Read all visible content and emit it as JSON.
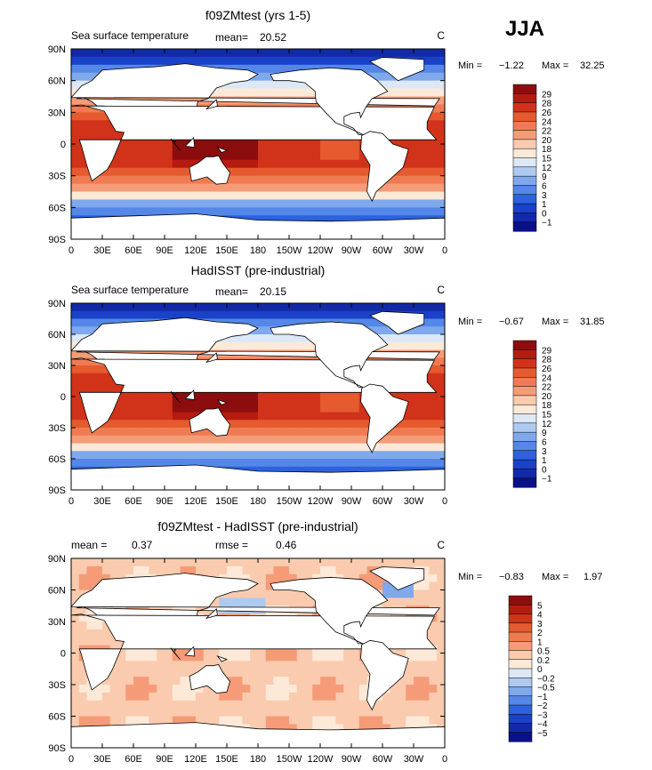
{
  "season_label": "JJA",
  "chart_data": [
    {
      "type": "heatmap",
      "title": "f09ZMtest (yrs 1-5)",
      "variable": "Sea surface temperature",
      "units": "C",
      "mean_label": "mean=",
      "mean_value": "20.52",
      "min_label": "Min =",
      "min_value": "−1.22",
      "max_label": "Max =",
      "max_value": "32.25",
      "colorbar_labels": [
        "29",
        "28",
        "26",
        "24",
        "22",
        "20",
        "18",
        "15",
        "12",
        "9",
        "6",
        "3",
        "1",
        "0",
        "−1"
      ],
      "colorbar_colors": [
        "#8c0d0d",
        "#b51b10",
        "#d1331a",
        "#e55a2e",
        "#f07b52",
        "#f69b78",
        "#facbae",
        "#fde9d8",
        "#dce8f6",
        "#aecaf0",
        "#7fa9ec",
        "#5487e8",
        "#2c62df",
        "#1a42c8",
        "#122aa7",
        "#0a108a"
      ],
      "lat_ticks": [
        "90N",
        "60N",
        "30N",
        "0",
        "30S",
        "60S",
        "90S"
      ],
      "lon_ticks": [
        "0",
        "30E",
        "60E",
        "90E",
        "120E",
        "150E",
        "180",
        "150W",
        "120W",
        "90W",
        "60W",
        "30W",
        "0"
      ],
      "field": "sst"
    },
    {
      "type": "heatmap",
      "title": "HadISST (pre-industrial)",
      "variable": "Sea surface temperature",
      "units": "C",
      "mean_label": "mean=",
      "mean_value": "20.15",
      "min_label": "Min =",
      "min_value": "−0.67",
      "max_label": "Max =",
      "max_value": "31.85",
      "colorbar_labels": [
        "29",
        "28",
        "26",
        "24",
        "22",
        "20",
        "18",
        "15",
        "12",
        "9",
        "6",
        "3",
        "1",
        "0",
        "−1"
      ],
      "colorbar_colors": [
        "#8c0d0d",
        "#b51b10",
        "#d1331a",
        "#e55a2e",
        "#f07b52",
        "#f69b78",
        "#facbae",
        "#fde9d8",
        "#dce8f6",
        "#aecaf0",
        "#7fa9ec",
        "#5487e8",
        "#2c62df",
        "#1a42c8",
        "#122aa7",
        "#0a108a"
      ],
      "lat_ticks": [
        "90N",
        "60N",
        "30N",
        "0",
        "30S",
        "60S",
        "90S"
      ],
      "lon_ticks": [
        "0",
        "30E",
        "60E",
        "90E",
        "120E",
        "150E",
        "180",
        "150W",
        "120W",
        "90W",
        "60W",
        "30W",
        "0"
      ],
      "field": "sst"
    },
    {
      "type": "heatmap",
      "title": "f09ZMtest - HadISST (pre-industrial)",
      "variable": "",
      "units": "C",
      "mean_label": "mean =",
      "mean_value": "0.37",
      "rmse_label": "rmse =",
      "rmse_value": "0.46",
      "min_label": "Min =",
      "min_value": "−0.83",
      "max_label": "Max =",
      "max_value": "1.97",
      "colorbar_labels": [
        "5",
        "4",
        "3",
        "2",
        "1",
        "0.5",
        "0.2",
        "0",
        "−0.2",
        "−0.5",
        "−1",
        "−2",
        "−3",
        "−4",
        "−5"
      ],
      "colorbar_colors": [
        "#8c0d0d",
        "#b51b10",
        "#d1331a",
        "#e55a2e",
        "#f07b52",
        "#f69b78",
        "#facbae",
        "#fde9d8",
        "#dce8f6",
        "#aecaf0",
        "#7fa9ec",
        "#5487e8",
        "#2c62df",
        "#1a42c8",
        "#122aa7",
        "#0a108a"
      ],
      "lat_ticks": [
        "90N",
        "60N",
        "30N",
        "0",
        "30S",
        "60S",
        "90S"
      ],
      "lon_ticks": [
        "0",
        "30E",
        "60E",
        "90E",
        "120E",
        "150E",
        "180",
        "150W",
        "120W",
        "90W",
        "60W",
        "30W",
        "0"
      ],
      "field": "diff"
    }
  ]
}
